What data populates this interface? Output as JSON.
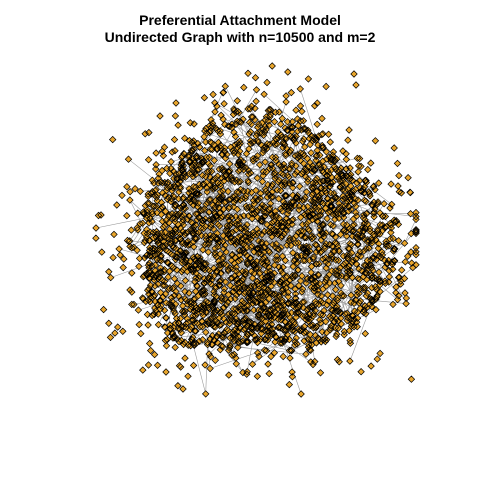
{
  "title": {
    "line1": "Preferential Attachment Model",
    "line2": "Undirected Graph with n=10500 and m=2"
  },
  "graph": {
    "model": "preferential-attachment",
    "directed": false,
    "n": 10500,
    "m": 2,
    "node_shape": "diamond",
    "node_fill": "#E8A52C",
    "node_stroke": "#000000",
    "edge_color": "#9A9A9A"
  }
}
